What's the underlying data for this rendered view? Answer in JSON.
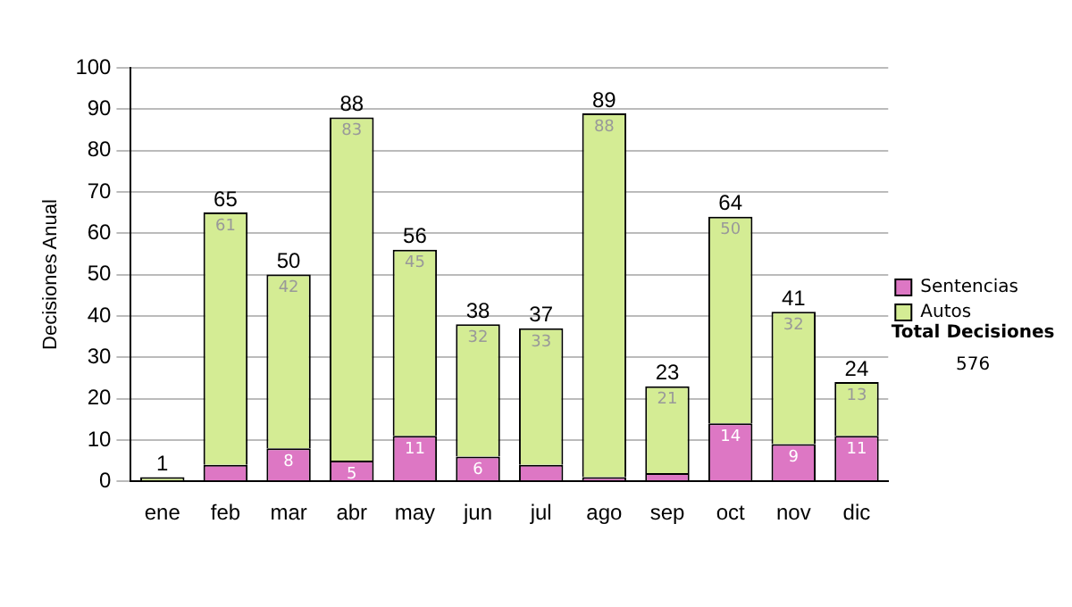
{
  "chart_data": {
    "type": "bar",
    "stacked": true,
    "ylabel": "Decisiones Anual",
    "categories": [
      "ene",
      "feb",
      "mar",
      "abr",
      "may",
      "jun",
      "jul",
      "ago",
      "sep",
      "oct",
      "nov",
      "dic"
    ],
    "series": [
      {
        "name": "Sentencias",
        "color": "#dd77c4",
        "values": [
          0,
          4,
          8,
          5,
          11,
          6,
          4,
          1,
          2,
          14,
          9,
          11
        ],
        "value_labels": [
          null,
          null,
          "8",
          "5",
          "11",
          "6",
          null,
          null,
          null,
          "14",
          "9",
          "11"
        ]
      },
      {
        "name": "Autos",
        "color": "#d4ec94",
        "values": [
          1,
          61,
          42,
          83,
          45,
          32,
          33,
          88,
          21,
          50,
          32,
          13
        ],
        "value_labels": [
          null,
          "61",
          "42",
          "83",
          "45",
          "32",
          "33",
          "88",
          "21",
          "50",
          "32",
          "13"
        ]
      }
    ],
    "totals": [
      "1",
      "65",
      "50",
      "88",
      "56",
      "38",
      "37",
      "89",
      "23",
      "64",
      "41",
      "24"
    ],
    "ylim": [
      0,
      100
    ],
    "yticks": [
      0,
      10,
      20,
      30,
      40,
      50,
      60,
      70,
      80,
      90,
      100
    ],
    "grid": "y",
    "legend": "right",
    "annotations": [
      "Total Decisiones",
      "576"
    ]
  }
}
